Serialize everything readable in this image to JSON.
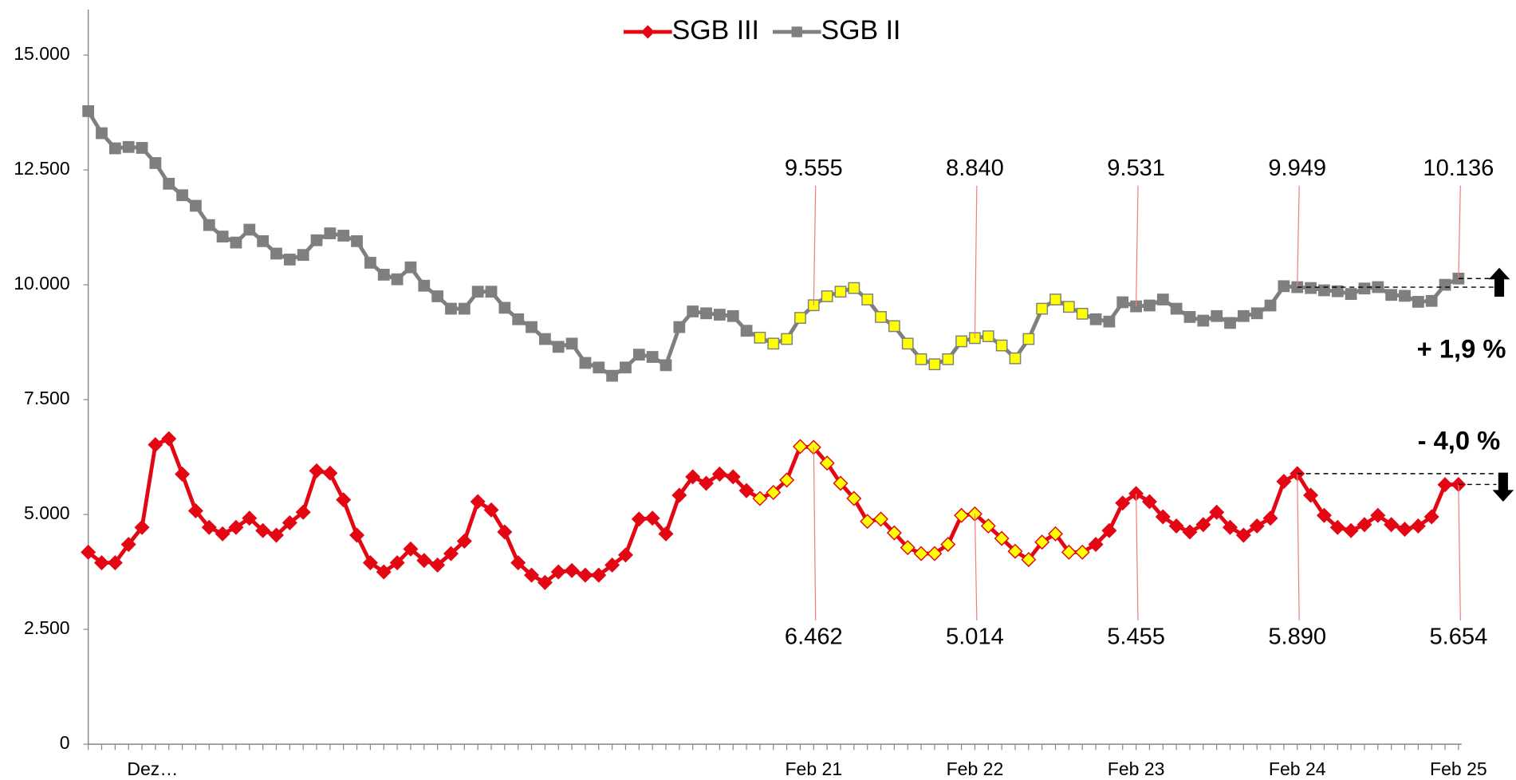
{
  "chart_data": {
    "type": "line",
    "categories": [
      null,
      null,
      null,
      null,
      "Dez…",
      null,
      null,
      null,
      null,
      null,
      null,
      null,
      null,
      null,
      null,
      null,
      null,
      null,
      null,
      null,
      null,
      null,
      null,
      null,
      null,
      null,
      null,
      null,
      null,
      null,
      null,
      null,
      null,
      null,
      null,
      null,
      null,
      null,
      null,
      null,
      null,
      null,
      null,
      null,
      null,
      null,
      null,
      null,
      null,
      null,
      null,
      null,
      null,
      null,
      "Feb 21",
      null,
      null,
      null,
      null,
      null,
      null,
      null,
      null,
      null,
      null,
      null,
      "Feb 22",
      null,
      null,
      null,
      null,
      null,
      null,
      null,
      null,
      null,
      null,
      null,
      "Feb 23",
      null,
      null,
      null,
      null,
      null,
      null,
      null,
      null,
      null,
      null,
      null,
      "Feb 24",
      null,
      null,
      null,
      null,
      null,
      null,
      null,
      null,
      null,
      null,
      null,
      "Feb 25"
    ],
    "series": [
      {
        "name": "SGB III",
        "color": "#e30613",
        "marker": "diamond",
        "values": [
          4180,
          3950,
          3950,
          4350,
          4720,
          6520,
          6650,
          5880,
          5080,
          4720,
          4580,
          4720,
          4920,
          4650,
          4550,
          4820,
          5050,
          5950,
          5900,
          5320,
          4550,
          3950,
          3750,
          3950,
          4250,
          4000,
          3900,
          4150,
          4420,
          5280,
          5100,
          4620,
          3950,
          3680,
          3520,
          3750,
          3780,
          3680,
          3680,
          3900,
          4120,
          4900,
          4920,
          4580,
          5420,
          5820,
          5680,
          5880,
          5820,
          5520,
          5350,
          5480,
          5750,
          6480,
          6462,
          6120,
          5680,
          5350,
          4850,
          4900,
          4600,
          4280,
          4150,
          4150,
          4350,
          4980,
          5014,
          4750,
          4480,
          4200,
          4020,
          4400,
          4580,
          4180,
          4180,
          4350,
          4650,
          5250,
          5455,
          5280,
          4950,
          4750,
          4620,
          4780,
          5050,
          4720,
          4550,
          4750,
          4920,
          5720,
          5890,
          5420,
          4980,
          4720,
          4650,
          4780,
          4980,
          4780,
          4680,
          4750,
          4950,
          5650,
          5654
        ],
        "value_labels": [
          null,
          null,
          null,
          null,
          null,
          null,
          null,
          null,
          null,
          null,
          null,
          null,
          null,
          null,
          null,
          null,
          null,
          null,
          null,
          null,
          null,
          null,
          null,
          null,
          null,
          null,
          null,
          null,
          null,
          null,
          null,
          null,
          null,
          null,
          null,
          null,
          null,
          null,
          null,
          null,
          null,
          null,
          null,
          null,
          null,
          null,
          null,
          null,
          null,
          null,
          null,
          null,
          null,
          null,
          "6.462",
          null,
          null,
          null,
          null,
          null,
          null,
          null,
          null,
          null,
          null,
          null,
          "5.014",
          null,
          null,
          null,
          null,
          null,
          null,
          null,
          null,
          null,
          null,
          null,
          "5.455",
          null,
          null,
          null,
          null,
          null,
          null,
          null,
          null,
          null,
          null,
          null,
          "5.890",
          null,
          null,
          null,
          null,
          null,
          null,
          null,
          null,
          null,
          null,
          null,
          "5.654"
        ]
      },
      {
        "name": "SGB II",
        "color": "#7f7f7f",
        "marker": "square",
        "values": [
          13780,
          13300,
          12970,
          13000,
          12980,
          12650,
          12200,
          11950,
          11720,
          11300,
          11050,
          10920,
          11200,
          10950,
          10680,
          10550,
          10650,
          10970,
          11120,
          11070,
          10950,
          10480,
          10220,
          10120,
          10380,
          9980,
          9750,
          9480,
          9480,
          9850,
          9850,
          9500,
          9250,
          9080,
          8820,
          8650,
          8720,
          8300,
          8200,
          8020,
          8200,
          8480,
          8430,
          8250,
          9080,
          9420,
          9380,
          9350,
          9320,
          9000,
          8850,
          8720,
          8820,
          9280,
          9555,
          9750,
          9850,
          9930,
          9680,
          9300,
          9100,
          8720,
          8380,
          8270,
          8380,
          8770,
          8840,
          8880,
          8680,
          8400,
          8820,
          9480,
          9680,
          9520,
          9370,
          9250,
          9200,
          9620,
          9531,
          9550,
          9680,
          9480,
          9300,
          9220,
          9320,
          9170,
          9320,
          9380,
          9550,
          9970,
          9949,
          9930,
          9880,
          9860,
          9800,
          9920,
          9950,
          9780,
          9760,
          9630,
          9650,
          10000,
          10136
        ],
        "value_labels": [
          null,
          null,
          null,
          null,
          null,
          null,
          null,
          null,
          null,
          null,
          null,
          null,
          null,
          null,
          null,
          null,
          null,
          null,
          null,
          null,
          null,
          null,
          null,
          null,
          null,
          null,
          null,
          null,
          null,
          null,
          null,
          null,
          null,
          null,
          null,
          null,
          null,
          null,
          null,
          null,
          null,
          null,
          null,
          null,
          null,
          null,
          null,
          null,
          null,
          null,
          null,
          null,
          null,
          null,
          "9.555",
          null,
          null,
          null,
          null,
          null,
          null,
          null,
          null,
          null,
          null,
          null,
          "8.840",
          null,
          null,
          null,
          null,
          null,
          null,
          null,
          null,
          null,
          null,
          null,
          "9.531",
          null,
          null,
          null,
          null,
          null,
          null,
          null,
          null,
          null,
          null,
          null,
          "9.949",
          null,
          null,
          null,
          null,
          null,
          null,
          null,
          null,
          null,
          null,
          null,
          "10.136"
        ]
      }
    ],
    "highlight_color": "#ffff00",
    "highlight_start": 50,
    "highlight_end": 74,
    "ylim": [
      0,
      15000
    ],
    "yticks": [
      0,
      {
        "value": 2500,
        "label": "2.500"
      },
      {
        "value": 5000,
        "label": "5.000"
      },
      {
        "value": 7500,
        "label": "7.500"
      },
      {
        "value": 10000,
        "label": "10.000"
      },
      {
        "value": 12500,
        "label": "12.500"
      },
      {
        "value": 15000,
        "label": "15.000"
      }
    ],
    "grid": false,
    "legend": "top",
    "annotations": [
      "+ 1,9 %",
      "- 4,0 %"
    ]
  }
}
